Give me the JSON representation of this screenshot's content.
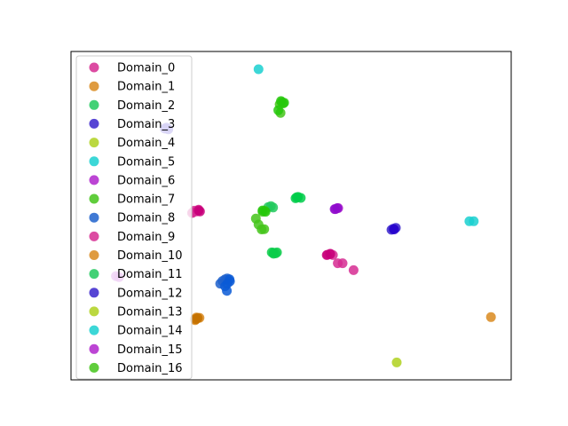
{
  "chart_data": {
    "type": "scatter",
    "title": "",
    "xlabel": "",
    "ylabel": "",
    "xlim": [
      0,
      100
    ],
    "ylim": [
      0,
      100
    ],
    "ticks": "none",
    "grid": false,
    "legend": "top-left",
    "series": [
      {
        "name": "Domain_0",
        "color": "#d62c92",
        "points": [
          [
            27.7,
            51.0
          ],
          [
            28.0,
            51.5
          ],
          [
            29.0,
            51.8
          ],
          [
            27.5,
            50.8
          ],
          [
            28.5,
            51.3
          ]
        ]
      },
      {
        "name": "Domain_1",
        "color": "#d98a1e",
        "points": [
          [
            28.1,
            18.5
          ],
          [
            28.6,
            18.7
          ],
          [
            29.2,
            18.9
          ],
          [
            28.2,
            18.2
          ],
          [
            95.4,
            19.1
          ]
        ]
      },
      {
        "name": "Domain_2",
        "color": "#22c95e",
        "points": [
          [
            44.8,
            52.6
          ],
          [
            45.4,
            52.9
          ],
          [
            45.9,
            52.5
          ]
        ]
      },
      {
        "name": "Domain_3",
        "color": "#3a25cc",
        "points": [
          [
            21.3,
            76.5
          ],
          [
            22.1,
            76.3
          ],
          [
            21.7,
            76.8
          ]
        ]
      },
      {
        "name": "Domain_4",
        "color": "#afd11e",
        "points": [
          [
            74.0,
            5.3
          ]
        ]
      },
      {
        "name": "Domain_5",
        "color": "#1ad0d0",
        "points": [
          [
            42.6,
            94.6
          ],
          [
            90.5,
            48.3
          ],
          [
            91.5,
            48.3
          ]
        ]
      },
      {
        "name": "Domain_6",
        "color": "#b025cc",
        "points": [
          [
            60.1,
            52.0
          ],
          [
            60.7,
            52.3
          ]
        ]
      },
      {
        "name": "Domain_7",
        "color": "#44c41a",
        "points": [
          [
            42.0,
            49.1
          ],
          [
            42.6,
            47.3
          ],
          [
            43.3,
            45.8
          ],
          [
            43.9,
            45.9
          ]
        ]
      },
      {
        "name": "Domain_8",
        "color": "#1f62cc",
        "points": [
          [
            34.4,
            30.1
          ],
          [
            35.0,
            30.6
          ],
          [
            35.5,
            30.9
          ],
          [
            33.9,
            29.3
          ]
        ]
      },
      {
        "name": "Domain_9",
        "color": "#d62c92",
        "points": [
          [
            58.3,
            38.1
          ],
          [
            58.9,
            38.4
          ],
          [
            59.5,
            38.0
          ],
          [
            60.6,
            35.5
          ],
          [
            61.7,
            35.5
          ],
          [
            64.2,
            33.4
          ]
        ]
      },
      {
        "name": "Domain_10",
        "color": "#d98a1e",
        "points": [
          [
            28.5,
            19.0
          ]
        ]
      },
      {
        "name": "Domain_11",
        "color": "#22c95e",
        "points": [
          [
            46.0,
            38.7
          ],
          [
            46.5,
            38.5
          ]
        ]
      },
      {
        "name": "Domain_12",
        "color": "#3a25cc",
        "points": [
          [
            73.2,
            46.0
          ],
          [
            73.8,
            46.3
          ],
          [
            72.8,
            45.7
          ]
        ]
      },
      {
        "name": "Domain_13",
        "color": "#afd11e",
        "points": []
      },
      {
        "name": "Domain_14",
        "color": "#1ad0d0",
        "points": []
      },
      {
        "name": "Domain_15",
        "color": "#b025cc",
        "points": [
          [
            10.2,
            31.6
          ],
          [
            10.9,
            31.3
          ]
        ]
      },
      {
        "name": "Domain_16",
        "color": "#44c41a",
        "points": [
          [
            47.4,
            83.9
          ],
          [
            47.9,
            84.6
          ],
          [
            48.2,
            84.2
          ],
          [
            47.6,
            81.3
          ],
          [
            43.5,
            51.2
          ],
          [
            44.0,
            51.5
          ]
        ]
      },
      {
        "name": "",
        "color": "#0a5ad6",
        "points": [
          [
            35.5,
            29.3
          ],
          [
            35.0,
            28.5
          ],
          [
            36.0,
            30.6
          ],
          [
            35.4,
            27.1
          ],
          [
            36.1,
            30.0
          ]
        ]
      },
      {
        "name": "",
        "color": "#25c80a",
        "points": [
          [
            47.7,
            84.9
          ],
          [
            48.4,
            84.4
          ],
          [
            47.1,
            82.1
          ]
        ]
      },
      {
        "name": "",
        "color": "#00cc4a",
        "points": [
          [
            51.0,
            55.3
          ],
          [
            51.6,
            55.7
          ],
          [
            52.2,
            55.4
          ],
          [
            51.3,
            55.6
          ]
        ]
      },
      {
        "name": "",
        "color": "#8e0acc",
        "points": [
          [
            60.5,
            52.3
          ],
          [
            59.9,
            52.0
          ]
        ]
      },
      {
        "name": "",
        "color": "#0acc4a",
        "points": [
          [
            46.0,
            38.4
          ],
          [
            46.8,
            38.8
          ],
          [
            45.6,
            38.8
          ]
        ]
      },
      {
        "name": "",
        "color": "#c8007a",
        "points": [
          [
            58.9,
            38.3
          ],
          [
            58.1,
            38.0
          ]
        ]
      },
      {
        "name": "",
        "color": "#2600cc",
        "points": [
          [
            73.4,
            45.8
          ]
        ]
      },
      {
        "name": "",
        "color": "#c8007a",
        "points": [
          [
            29.0,
            51.6
          ],
          [
            29.3,
            51.3
          ]
        ]
      },
      {
        "name": "",
        "color": "#c47200",
        "points": [
          [
            28.8,
            18.8
          ],
          [
            28.4,
            18.5
          ]
        ]
      },
      {
        "name": "",
        "color": "#25c80a",
        "points": [
          [
            43.5,
            51.6
          ],
          [
            44.2,
            51.2
          ]
        ]
      }
    ]
  }
}
